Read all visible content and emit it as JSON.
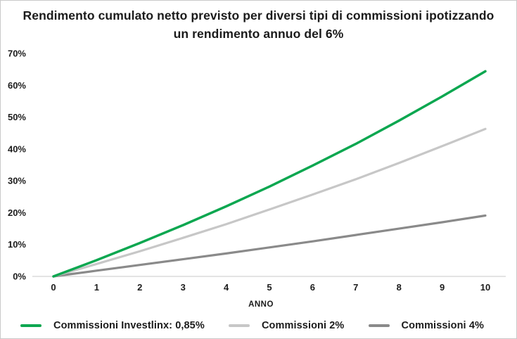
{
  "title": "Rendimento cumulato netto previsto per diversi tipi di commissioni ipotizzando un rendimento annuo del 6%",
  "colors": {
    "accent_green": "#0ca750",
    "light_gray": "#c7c7c7",
    "dark_gray": "#8a8a8a",
    "axis_line": "#dcdcdc",
    "text": "#1c1c1c",
    "background": "#ffffff",
    "frame_border": "#c9c9c9"
  },
  "chart_data": {
    "type": "line",
    "x": [
      0,
      1,
      2,
      3,
      4,
      5,
      6,
      7,
      8,
      9,
      10
    ],
    "series": [
      {
        "name": "Commissioni Investlinx: 0,85%",
        "color": "#0ca750",
        "stroke_width": 3.5,
        "values": [
          0,
          5.1,
          10.5,
          16.1,
          22.0,
          28.2,
          34.8,
          41.6,
          48.9,
          56.5,
          64.4
        ]
      },
      {
        "name": "Commissioni 2%",
        "color": "#c7c7c7",
        "stroke_width": 3.2,
        "values": [
          0,
          3.9,
          7.9,
          12.1,
          16.4,
          21.0,
          25.7,
          30.5,
          35.6,
          40.9,
          46.3
        ]
      },
      {
        "name": "Commissioni 4%",
        "color": "#8a8a8a",
        "stroke_width": 3.2,
        "values": [
          0,
          1.8,
          3.6,
          5.4,
          7.2,
          9.1,
          11.0,
          13.0,
          15.0,
          17.0,
          19.1
        ]
      }
    ],
    "xlabel": "ANNO",
    "ylabel": "",
    "xlim": [
      0,
      10
    ],
    "ylim": [
      0,
      70
    ],
    "xticks": [
      0,
      1,
      2,
      3,
      4,
      5,
      6,
      7,
      8,
      9,
      10
    ],
    "yticks": [
      0,
      10,
      20,
      30,
      40,
      50,
      60,
      70
    ],
    "ytick_suffix": "%",
    "grid": false,
    "legend_position": "bottom"
  }
}
